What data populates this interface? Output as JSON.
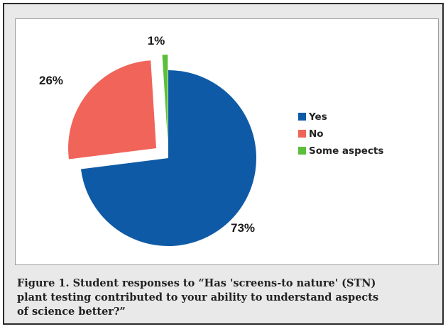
{
  "chart_data": {
    "type": "pie",
    "title": "",
    "slices": [
      {
        "label": "Yes",
        "value": 73,
        "display": "73%",
        "color": "#0f5aa6",
        "exploded": false
      },
      {
        "label": "No",
        "value": 26,
        "display": "26%",
        "color": "#f0645a",
        "exploded": true
      },
      {
        "label": "Some aspects",
        "value": 1,
        "display": "1%",
        "color": "#5cbf3c",
        "exploded": true
      }
    ],
    "legend": {
      "placement": "right",
      "entries": [
        "Yes",
        "No",
        "Some aspects"
      ]
    },
    "start_angle": "12 o'clock, clockwise"
  },
  "caption": {
    "lines": [
      "Figure 1. Student responses to “Has 'screens-to nature' (STN)",
      "plant testing contributed to your ability to understand aspects",
      "of science better?”"
    ]
  }
}
